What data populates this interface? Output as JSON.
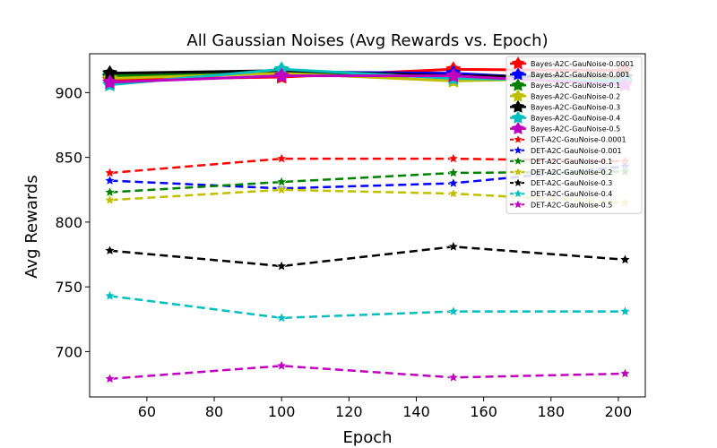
{
  "chart_data": {
    "type": "line",
    "title": "All Gaussian Noises (Avg Rewards vs. Epoch)",
    "xlabel": "Epoch",
    "ylabel": "Avg Rewards",
    "xlim": [
      43,
      208
    ],
    "ylim": [
      665,
      930
    ],
    "xticks": [
      60,
      80,
      100,
      120,
      140,
      160,
      180,
      200
    ],
    "yticks": [
      700,
      750,
      800,
      850,
      900
    ],
    "grid": false,
    "legend_position": "top-right",
    "series": [
      {
        "name": "Bayes-A2C-GauNoise-0.0001",
        "color": "#ff0000",
        "style": "solid",
        "x": [
          49,
          100,
          151,
          202
        ],
        "y": [
          910,
          912,
          918,
          917
        ]
      },
      {
        "name": "Bayes-A2C-GauNoise-0.001",
        "color": "#0000ff",
        "style": "solid",
        "x": [
          49,
          100,
          151,
          202
        ],
        "y": [
          912,
          916,
          915,
          908
        ]
      },
      {
        "name": "Bayes-A2C-GauNoise-0.1",
        "color": "#008000",
        "style": "solid",
        "x": [
          49,
          100,
          151,
          202
        ],
        "y": [
          913,
          915,
          912,
          911
        ]
      },
      {
        "name": "Bayes-A2C-GauNoise-0.2",
        "color": "#bfbf00",
        "style": "solid",
        "x": [
          49,
          100,
          151,
          202
        ],
        "y": [
          911,
          915,
          909,
          912
        ]
      },
      {
        "name": "Bayes-A2C-GauNoise-0.3",
        "color": "#000000",
        "style": "solid",
        "x": [
          49,
          100,
          151,
          202
        ],
        "y": [
          915,
          917,
          913,
          912
        ]
      },
      {
        "name": "Bayes-A2C-GauNoise-0.4",
        "color": "#00bfbf",
        "style": "solid",
        "x": [
          49,
          100,
          151,
          202
        ],
        "y": [
          906,
          918,
          911,
          909
        ]
      },
      {
        "name": "Bayes-A2C-GauNoise-0.5",
        "color": "#bf00bf",
        "style": "solid",
        "x": [
          49,
          100,
          151,
          202
        ],
        "y": [
          908,
          913,
          913,
          906
        ]
      },
      {
        "name": "DET-A2C-GauNoise-0.0001",
        "color": "#ff0000",
        "style": "dashed",
        "x": [
          49,
          100,
          151,
          202
        ],
        "y": [
          838,
          849,
          849,
          847
        ]
      },
      {
        "name": "DET-A2C-GauNoise-0.001",
        "color": "#0000ff",
        "style": "dashed",
        "x": [
          49,
          100,
          151,
          202
        ],
        "y": [
          832,
          826,
          830,
          843
        ]
      },
      {
        "name": "DET-A2C-GauNoise-0.1",
        "color": "#008000",
        "style": "dashed",
        "x": [
          49,
          100,
          151,
          202
        ],
        "y": [
          823,
          831,
          838,
          839
        ]
      },
      {
        "name": "DET-A2C-GauNoise-0.2",
        "color": "#bfbf00",
        "style": "dashed",
        "x": [
          49,
          100,
          151,
          202
        ],
        "y": [
          817,
          825,
          822,
          815
        ]
      },
      {
        "name": "DET-A2C-GauNoise-0.3",
        "color": "#000000",
        "style": "dashed",
        "x": [
          49,
          100,
          151,
          202
        ],
        "y": [
          778,
          766,
          781,
          771
        ]
      },
      {
        "name": "DET-A2C-GauNoise-0.4",
        "color": "#00bfbf",
        "style": "dashed",
        "x": [
          49,
          100,
          151,
          202
        ],
        "y": [
          743,
          726,
          731,
          731
        ]
      },
      {
        "name": "DET-A2C-GauNoise-0.5",
        "color": "#bf00bf",
        "style": "dashed",
        "x": [
          49,
          100,
          151,
          202
        ],
        "y": [
          679,
          689,
          680,
          683
        ]
      }
    ]
  }
}
